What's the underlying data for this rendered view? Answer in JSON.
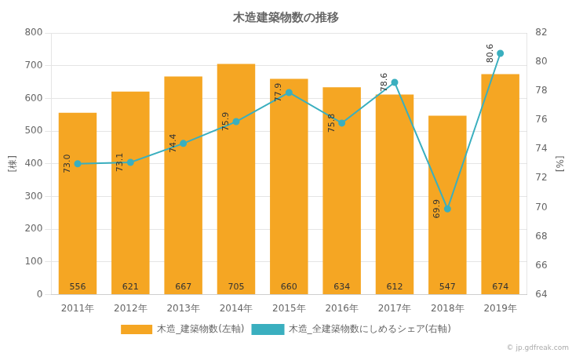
{
  "chart_data": {
    "type": "bar",
    "title": "木造建築物数の推移",
    "categories": [
      "2011年",
      "2012年",
      "2013年",
      "2014年",
      "2015年",
      "2016年",
      "2017年",
      "2018年",
      "2019年"
    ],
    "series": [
      {
        "name": "木造_建築物数(左軸)",
        "type": "bar",
        "color": "#f5a623",
        "values": [
          556,
          621,
          667,
          705,
          660,
          634,
          612,
          547,
          674
        ]
      },
      {
        "name": "木造_全建築物数にしめるシェア(右軸)",
        "type": "line",
        "axis": "y2",
        "color": "#3aafbf",
        "marker": "circle",
        "values": [
          73.0,
          73.1,
          74.4,
          75.9,
          77.9,
          75.8,
          78.6,
          69.9,
          80.6
        ],
        "value_labels": [
          "73.0",
          "73.1",
          "74.4",
          "75.9",
          "77.9",
          "75.8",
          "78.6",
          "69.9",
          "80.6"
        ]
      }
    ],
    "ylabel": "[棟]",
    "y2label": "[%]",
    "ylim": [
      0,
      800
    ],
    "yticks": [
      0,
      100,
      200,
      300,
      400,
      500,
      600,
      700,
      800
    ],
    "y2lim": [
      64.0,
      82.0
    ],
    "y2ticks": [
      64,
      66,
      68,
      70,
      72,
      74,
      76,
      78,
      80,
      82
    ],
    "grid": true,
    "legend": "bottom",
    "data_labels": true,
    "annotations": [
      "© jp.gdfreak.com"
    ]
  }
}
